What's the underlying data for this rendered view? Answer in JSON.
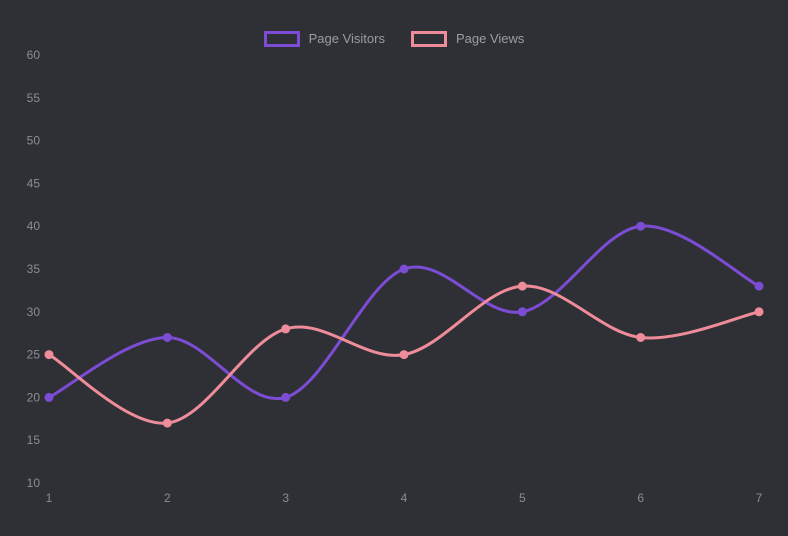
{
  "app": {
    "background_color": "#2e3036",
    "axis_text_color": "#8b8d91",
    "legend_text_color": "#9b9da2"
  },
  "chart_data": {
    "type": "line",
    "title": "",
    "xlabel": "",
    "ylabel": "",
    "x": [
      1,
      2,
      3,
      4,
      5,
      6,
      7
    ],
    "xtick_labels": [
      "1",
      "2",
      "3",
      "4",
      "5",
      "6",
      "7"
    ],
    "yticks": [
      10,
      15,
      20,
      25,
      30,
      35,
      40,
      45,
      50,
      55,
      60
    ],
    "ylim": [
      10,
      60
    ],
    "grid": false,
    "legend_position": "top-center",
    "line_style": "smooth",
    "marker": "filled-circle",
    "series": [
      {
        "name": "Page Visitors",
        "values": [
          20,
          27,
          20,
          35,
          30,
          40,
          33
        ],
        "color": "#7c4dd4"
      },
      {
        "name": "Page Views",
        "values": [
          25,
          17,
          28,
          25,
          33,
          27,
          30
        ],
        "color": "#ee8d99"
      }
    ]
  }
}
